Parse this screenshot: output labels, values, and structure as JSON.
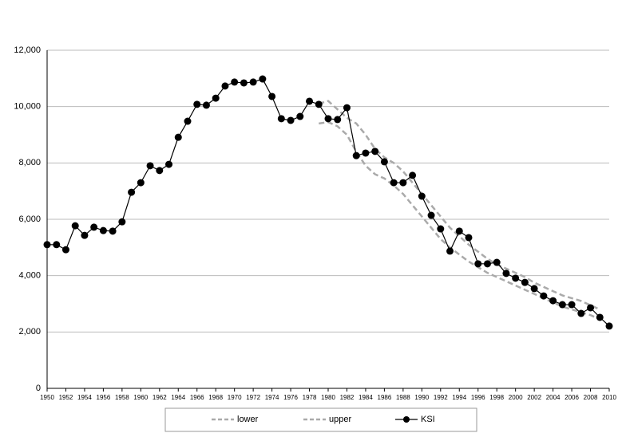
{
  "chart_data": {
    "type": "line",
    "xlim": [
      1950,
      2010
    ],
    "xticks": [
      1950,
      1952,
      1954,
      1956,
      1958,
      1960,
      1962,
      1964,
      1966,
      1968,
      1970,
      1972,
      1974,
      1976,
      1978,
      1980,
      1982,
      1984,
      1986,
      1988,
      1990,
      1992,
      1994,
      1996,
      1998,
      2000,
      2002,
      2004,
      2006,
      2008,
      2010
    ],
    "ylim": [
      0,
      12000
    ],
    "yticks": [
      0,
      {
        "value": 2000,
        "label": "2,000"
      },
      {
        "value": 4000,
        "label": "4,000"
      },
      {
        "value": 6000,
        "label": "6,000"
      },
      {
        "value": 8000,
        "label": "8,000"
      },
      {
        "value": 10000,
        "label": "10,000"
      },
      {
        "value": 12000,
        "label": "12,000"
      }
    ],
    "grid": true,
    "legend": "bottom",
    "series": [
      {
        "name": "lower",
        "color": "#aaaaaa",
        "style": "dashed",
        "x": [
          1979,
          1980,
          1981,
          1982,
          1983,
          1984,
          1985,
          1986,
          1987,
          1988,
          1989,
          1990,
          1991,
          1992,
          1993,
          1994,
          1995,
          1996,
          1997,
          1998,
          1999,
          2000,
          2001,
          2002,
          2003,
          2004,
          2005,
          2006,
          2007,
          2008,
          2009
        ],
        "values": [
          9400,
          9450,
          9300,
          9000,
          8400,
          7900,
          7600,
          7450,
          7200,
          6900,
          6500,
          6100,
          5700,
          5300,
          5000,
          4750,
          4500,
          4300,
          4100,
          3950,
          3800,
          3650,
          3500,
          3350,
          3200,
          3050,
          2900,
          2800,
          2700,
          2600,
          2450
        ]
      },
      {
        "name": "upper",
        "color": "#aaaaaa",
        "style": "dashed",
        "x": [
          1979,
          1980,
          1981,
          1982,
          1983,
          1984,
          1985,
          1986,
          1987,
          1988,
          1989,
          1990,
          1991,
          1992,
          1993,
          1994,
          1995,
          1996,
          1997,
          1998,
          1999,
          2000,
          2001,
          2002,
          2003,
          2004,
          2005,
          2006,
          2007,
          2008,
          2009
        ],
        "values": [
          10100,
          10200,
          9900,
          9600,
          9400,
          9000,
          8500,
          8200,
          8000,
          7700,
          7300,
          6900,
          6500,
          6100,
          5700,
          5400,
          5100,
          4850,
          4600,
          4400,
          4250,
          4100,
          3950,
          3750,
          3600,
          3450,
          3300,
          3200,
          3100,
          2950,
          2800
        ]
      },
      {
        "name": "KSI",
        "color": "#000000",
        "style": "solid",
        "marker": "circle",
        "x": [
          1950,
          1951,
          1952,
          1953,
          1954,
          1955,
          1956,
          1957,
          1958,
          1959,
          1960,
          1961,
          1962,
          1963,
          1964,
          1965,
          1966,
          1967,
          1968,
          1969,
          1970,
          1971,
          1972,
          1973,
          1974,
          1975,
          1976,
          1977,
          1978,
          1979,
          1980,
          1981,
          1982,
          1983,
          1984,
          1985,
          1986,
          1987,
          1988,
          1989,
          1990,
          1991,
          1992,
          1993,
          1994,
          1995,
          1996,
          1997,
          1998,
          1999,
          2000,
          2001,
          2002,
          2003,
          2004,
          2005,
          2006,
          2007,
          2008,
          2009,
          2010
        ],
        "values": [
          5100,
          5100,
          4920,
          5770,
          5430,
          5720,
          5600,
          5580,
          5910,
          6960,
          7300,
          7900,
          7730,
          7950,
          8910,
          9480,
          10080,
          10050,
          10300,
          10730,
          10870,
          10840,
          10870,
          10980,
          10360,
          9570,
          9510,
          9650,
          10190,
          10080,
          9570,
          9540,
          9960,
          8260,
          8350,
          8410,
          8040,
          7300,
          7300,
          7560,
          6820,
          6140,
          5660,
          4870,
          5580,
          5350,
          4420,
          4420,
          4470,
          4080,
          3910,
          3760,
          3540,
          3280,
          3110,
          2970,
          2970,
          2660,
          2860,
          2520,
          2210
        ]
      }
    ]
  }
}
